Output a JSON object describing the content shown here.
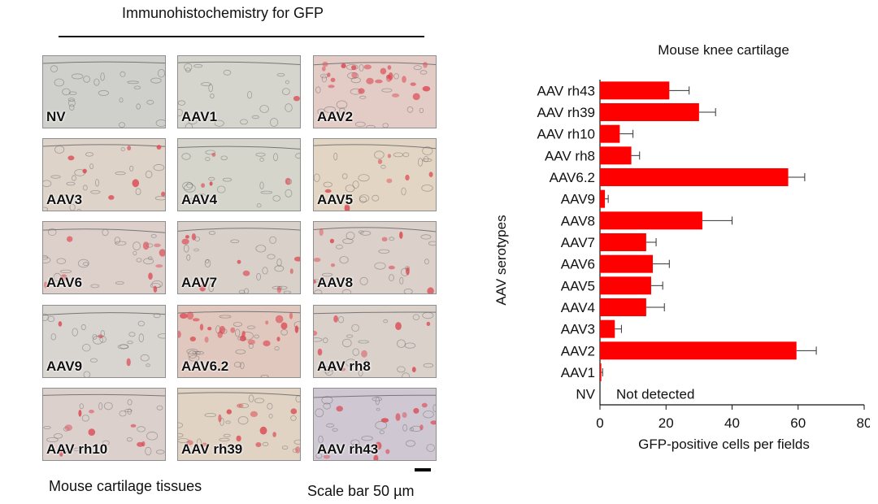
{
  "figure": {
    "ihc_title": "Immunohistochemistry for GFP",
    "caption": "Mouse cartilage tissues",
    "scale_text": "Scale bar 50 µm"
  },
  "panels": [
    {
      "label": "NV",
      "tone": "#cfd0cb",
      "stain": 0.0
    },
    {
      "label": "AAV1",
      "tone": "#d5d4cd",
      "stain": 0.05
    },
    {
      "label": "AAV2",
      "tone": "#e3cbc6",
      "stain": 0.9
    },
    {
      "label": "AAV3",
      "tone": "#ddd3c8",
      "stain": 0.25
    },
    {
      "label": "AAV4",
      "tone": "#d6d5cc",
      "stain": 0.15
    },
    {
      "label": "AAV5",
      "tone": "#e3d5c3",
      "stain": 0.25
    },
    {
      "label": "AAV6",
      "tone": "#ddd0cb",
      "stain": 0.35
    },
    {
      "label": "AAV7",
      "tone": "#d9d0c9",
      "stain": 0.35
    },
    {
      "label": "AAV8",
      "tone": "#dcd0ca",
      "stain": 0.4
    },
    {
      "label": "AAV9",
      "tone": "#d8d4cf",
      "stain": 0.1
    },
    {
      "label": "AAV6.2",
      "tone": "#e0c8bf",
      "stain": 0.8
    },
    {
      "label": "AAV rh8",
      "tone": "#dbd1cb",
      "stain": 0.3
    },
    {
      "label": "AAV rh10",
      "tone": "#dcd0cd",
      "stain": 0.3
    },
    {
      "label": "AAV rh39",
      "tone": "#e0d3c4",
      "stain": 0.45
    },
    {
      "label": "AAV rh43",
      "tone": "#cfc8d3",
      "stain": 0.45
    }
  ],
  "chart_data": {
    "type": "bar",
    "orientation": "horizontal",
    "title": "Mouse knee cartilage",
    "xlabel": "GFP-positive cells per fields",
    "ylabel": "AAV serotypes",
    "xlim": [
      0,
      80
    ],
    "xticks": [
      0,
      20,
      40,
      60,
      80
    ],
    "categories": [
      "AAV rh43",
      "AAV rh39",
      "AAV rh10",
      "AAV rh8",
      "AAV6.2",
      "AAV9",
      "AAV8",
      "AAV7",
      "AAV6",
      "AAV5",
      "AAV4",
      "AAV3",
      "AAV2",
      "AAV1",
      "NV"
    ],
    "values": [
      21,
      30,
      6,
      9.5,
      57,
      1.5,
      31,
      14,
      16,
      15.5,
      14,
      4.5,
      59.5,
      0.4,
      0
    ],
    "errors": [
      6,
      5,
      4,
      2.5,
      5,
      1,
      9,
      3,
      5,
      3.5,
      5.5,
      2,
      6,
      0.4,
      0
    ],
    "annotation": "Not detected",
    "bar_color": "#ff0000",
    "grid": false
  }
}
